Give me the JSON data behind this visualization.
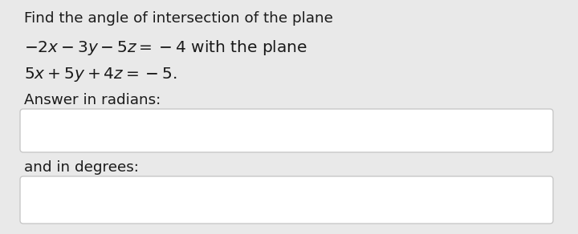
{
  "background_color": "#e9e9e9",
  "text_background": "#ffffff",
  "line1": "Find the angle of intersection of the plane",
  "line2": "$-2x - 3y - 5z = -4$ with the plane",
  "line3": "$5x + 5y + 4z = -5.$",
  "line4": "Answer in radians:",
  "line5": "and in degrees:",
  "text_color": "#1a1a1a",
  "box_border_color": "#c8c8c8",
  "font_size": 13.2,
  "math_font_size": 14.5
}
